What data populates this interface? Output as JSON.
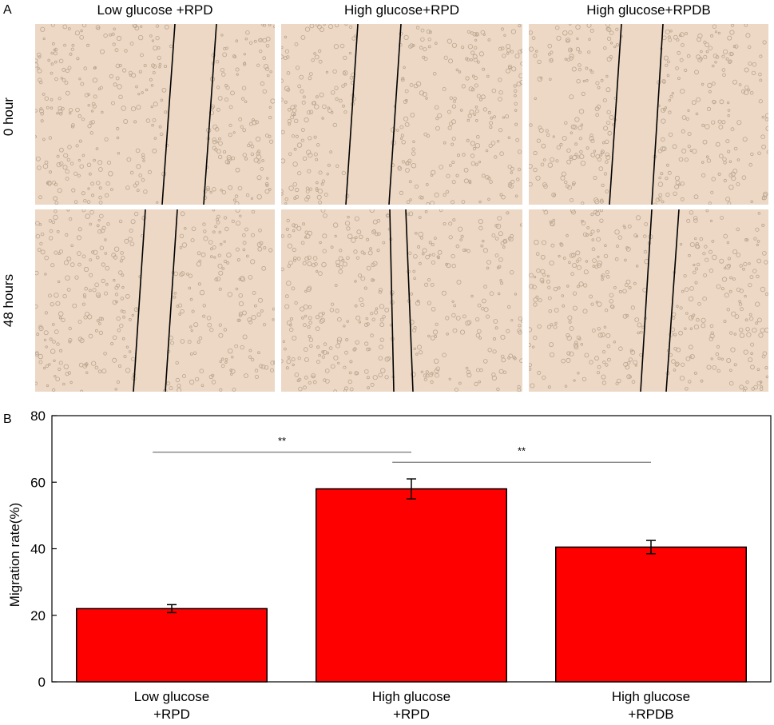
{
  "panel_a": {
    "letter": "A",
    "columns": [
      "Low glucose +RPD",
      "High glucose+RPD",
      "High glucose+RPDB"
    ],
    "rows": [
      "0 hour",
      "48 hours"
    ],
    "background_color": "#ecd8c4",
    "line_color": "#000000"
  },
  "panel_b": {
    "letter": "B"
  },
  "chart_data": {
    "type": "bar",
    "categories": [
      "Low glucose\n+RPD",
      "High glucose\n+RPD",
      "High glucose\n+RPDB"
    ],
    "values": [
      22,
      58,
      40.5
    ],
    "errors": [
      1.2,
      3,
      2
    ],
    "ylabel": "Migration rate(%)",
    "xlabel": "",
    "ylim": [
      0,
      80
    ],
    "yticks": [
      0,
      20,
      40,
      60,
      80
    ],
    "bar_color": "#ff0000",
    "significance": [
      {
        "from": 0,
        "to": 1,
        "label": "**",
        "y": 69
      },
      {
        "from": 1,
        "to": 2,
        "label": "**",
        "y": 66
      }
    ],
    "grid": false
  }
}
